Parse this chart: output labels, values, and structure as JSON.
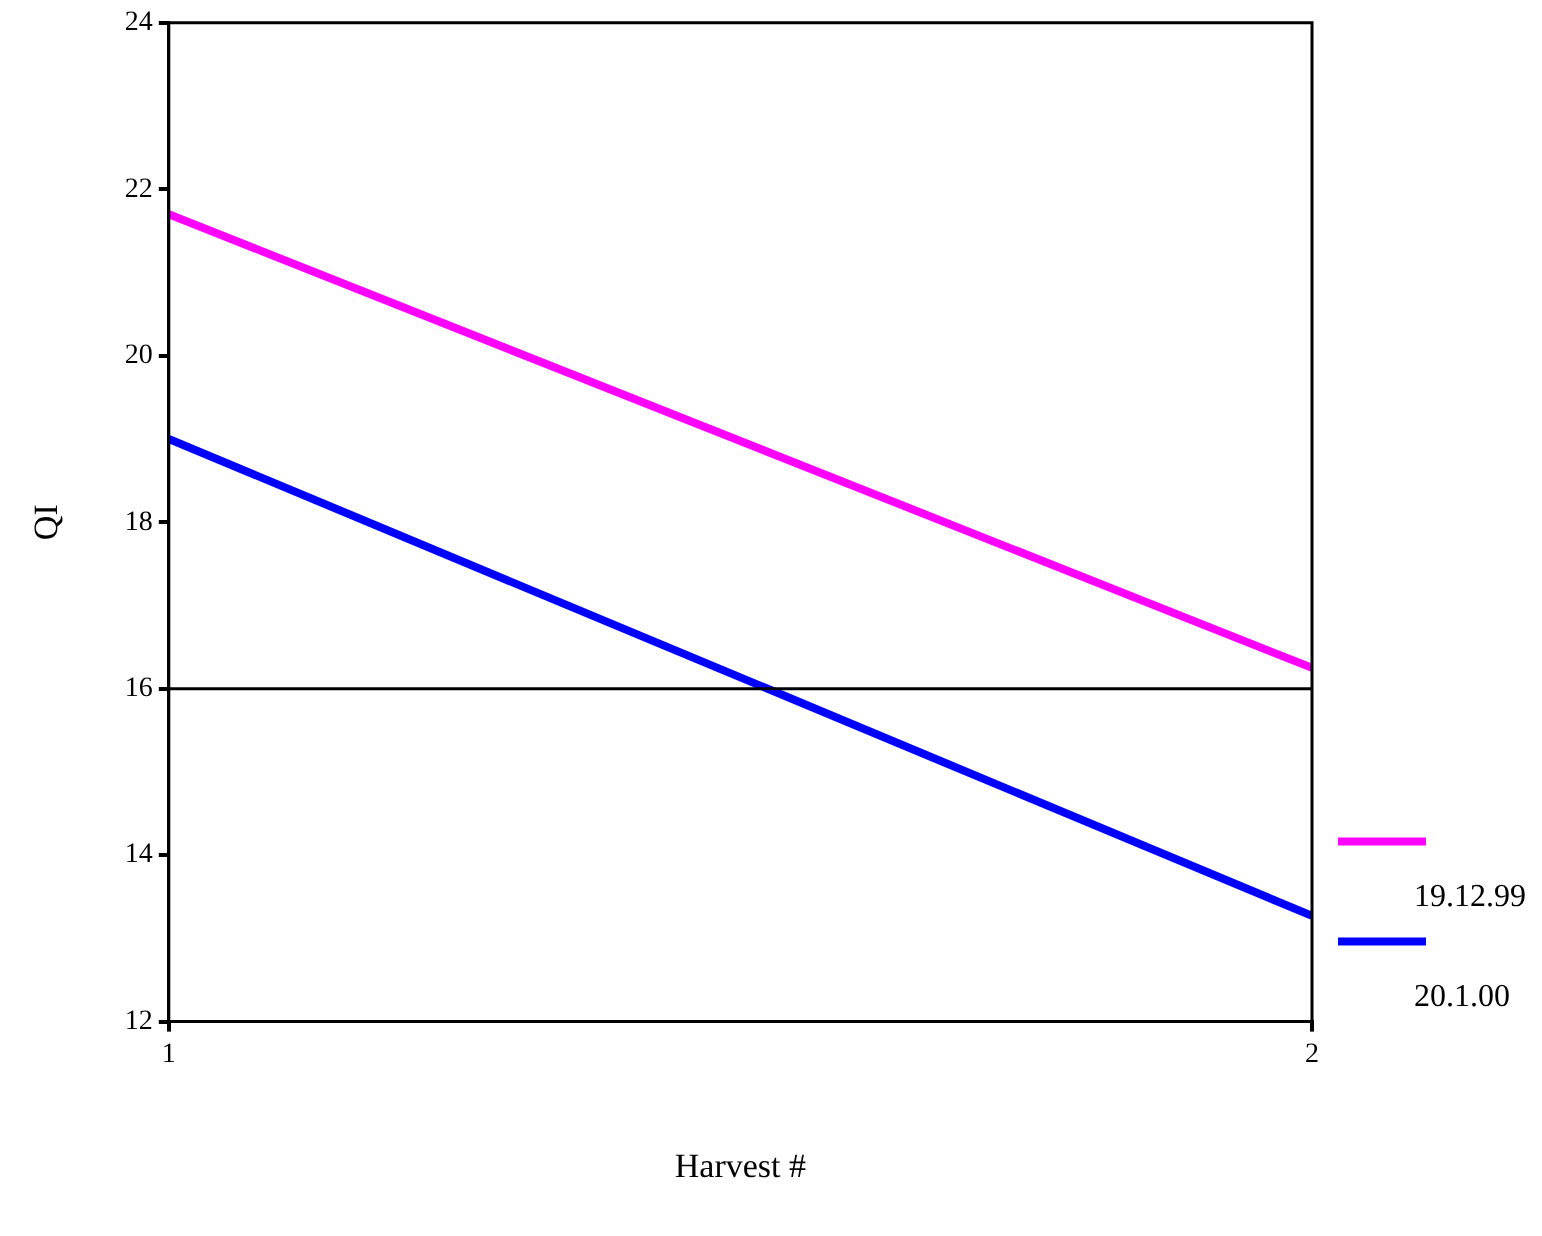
{
  "chart_data": {
    "type": "line",
    "xlabel": "Harvest #",
    "ylabel": "QI",
    "x": [
      1,
      2
    ],
    "series": [
      {
        "name": "19.12.99",
        "color": "#ff00ff",
        "values": [
          21.7,
          16.25
        ]
      },
      {
        "name": "20.1.00",
        "color": "#0000ff",
        "values": [
          19.0,
          13.27
        ]
      }
    ],
    "xlim": [
      1,
      2
    ],
    "xticks": [
      1,
      2
    ],
    "ylim": [
      12,
      24
    ],
    "yticks": [
      12,
      14,
      16,
      18,
      20,
      22,
      24
    ],
    "ref_lines": [
      {
        "axis": "y",
        "value": 16,
        "color": "#000000"
      }
    ],
    "grid": false,
    "legend": "right",
    "marker": "none",
    "line_style": "solid"
  }
}
